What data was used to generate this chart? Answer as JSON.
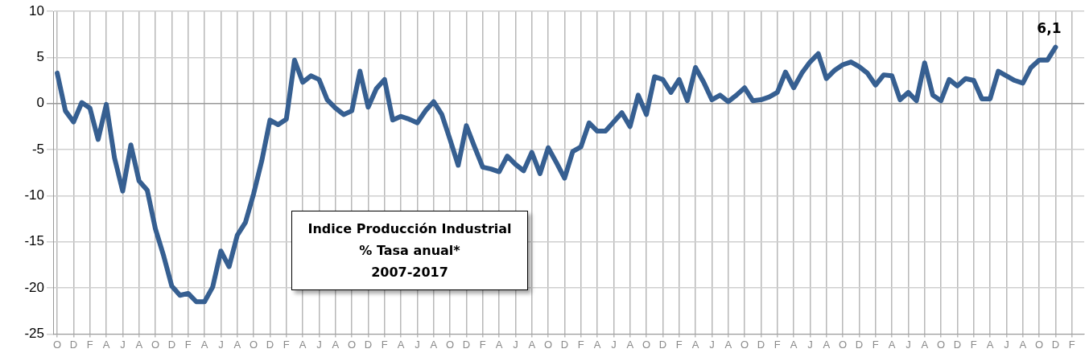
{
  "chart_data": {
    "type": "line",
    "title": "Indice Producción Industrial",
    "subtitle": "% Tasa anual*",
    "annotations": [
      "2007-2017"
    ],
    "categories": [
      "O",
      null,
      "D",
      null,
      "F",
      null,
      "A",
      null,
      "J",
      null,
      "A",
      null,
      "O",
      null,
      "D",
      null,
      "F",
      null,
      "A",
      null,
      "J",
      null,
      "A",
      null,
      "O",
      null,
      "D",
      null,
      "F",
      null,
      "A",
      null,
      "J",
      null,
      "A",
      null,
      "O",
      null,
      "D",
      null,
      "F",
      null,
      "A",
      null,
      "J",
      null,
      "A",
      null,
      "O",
      null,
      "D",
      null,
      "F",
      null,
      "A",
      null,
      "J",
      null,
      "A",
      null,
      "O",
      null,
      "D",
      null,
      "F",
      null,
      "A",
      null,
      "J",
      null,
      "A",
      null,
      "O",
      null,
      "D",
      null,
      "F",
      null,
      "A",
      null,
      "J",
      null,
      "A",
      null,
      "O",
      null,
      "D",
      null,
      "F",
      null,
      "A",
      null,
      "J",
      null,
      "A",
      null,
      "O",
      null,
      "D",
      null,
      "F",
      null,
      "A",
      null,
      "J",
      null,
      "A",
      null,
      "O",
      null,
      "D",
      null,
      "F",
      null,
      "A",
      null,
      "J",
      null,
      "A",
      null,
      "O",
      null,
      "D",
      null,
      "F",
      null
    ],
    "values": [
      3.3,
      -0.8,
      -2.0,
      0.1,
      -0.5,
      -3.9,
      -0.1,
      -5.9,
      -9.5,
      -4.5,
      -8.4,
      -9.4,
      -13.6,
      -16.5,
      -19.8,
      -20.8,
      -20.6,
      -21.5,
      -21.5,
      -19.9,
      -16.0,
      -17.7,
      -14.3,
      -12.9,
      -9.8,
      -6.2,
      -1.8,
      -2.3,
      -1.7,
      4.7,
      2.3,
      3.0,
      2.6,
      0.4,
      -0.5,
      -1.2,
      -0.8,
      3.5,
      -0.4,
      1.6,
      2.6,
      -1.8,
      -1.4,
      -1.7,
      -2.1,
      -0.8,
      0.2,
      -1.2,
      -3.9,
      -6.7,
      -2.4,
      -4.7,
      -6.9,
      -7.1,
      -7.4,
      -5.7,
      -6.6,
      -7.3,
      -5.3,
      -7.6,
      -4.8,
      -6.4,
      -8.1,
      -5.2,
      -4.7,
      -2.1,
      -3.0,
      -3.0,
      -2.0,
      -1.0,
      -2.5,
      0.9,
      -1.2,
      2.9,
      2.6,
      1.2,
      2.6,
      0.3,
      3.9,
      2.3,
      0.4,
      0.9,
      0.2,
      0.9,
      1.7,
      0.3,
      0.4,
      0.7,
      1.2,
      3.4,
      1.7,
      3.3,
      4.5,
      5.4,
      2.7,
      3.6,
      4.2,
      4.5,
      4.0,
      3.3,
      2.0,
      3.1,
      3.0,
      0.4,
      1.2,
      0.3,
      4.4,
      0.9,
      0.3,
      2.6,
      1.9,
      2.7,
      2.5,
      0.5,
      0.5,
      3.5,
      3.0,
      2.5,
      2.2,
      3.9,
      4.7,
      4.7,
      6.1,
      null,
      null,
      null
    ],
    "value_labels": [
      null,
      null,
      null,
      null,
      null,
      null,
      null,
      null,
      null,
      null,
      null,
      null,
      null,
      null,
      null,
      null,
      null,
      null,
      null,
      null,
      null,
      null,
      null,
      null,
      null,
      null,
      null,
      null,
      null,
      null,
      null,
      null,
      null,
      null,
      null,
      null,
      null,
      null,
      null,
      null,
      null,
      null,
      null,
      null,
      null,
      null,
      null,
      null,
      null,
      null,
      null,
      null,
      null,
      null,
      null,
      null,
      null,
      null,
      null,
      null,
      null,
      null,
      null,
      null,
      null,
      null,
      null,
      null,
      null,
      null,
      null,
      null,
      null,
      null,
      null,
      null,
      null,
      null,
      null,
      null,
      null,
      null,
      null,
      null,
      null,
      null,
      null,
      null,
      null,
      null,
      null,
      null,
      null,
      null,
      null,
      null,
      null,
      null,
      null,
      null,
      null,
      null,
      null,
      null,
      null,
      null,
      null,
      null,
      null,
      null,
      null,
      null,
      null,
      null,
      null,
      null,
      null,
      null,
      null,
      null,
      null,
      null,
      "6,1",
      null,
      null,
      null
    ],
    "color": "#365f91",
    "ylim": [
      -25,
      10
    ],
    "yticks": [
      -25,
      -20,
      -15,
      -10,
      -5,
      0,
      5,
      10
    ],
    "grid": true,
    "marker": "none",
    "line_style": "solid",
    "legend": false
  }
}
